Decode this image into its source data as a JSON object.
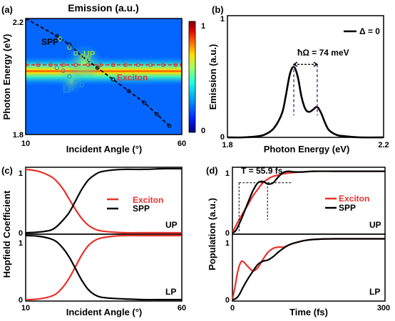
{
  "chart_data": [
    {
      "panel": "(a)",
      "type": "heatmap",
      "title": "Emission (a.u.)",
      "xlabel": "Incident Angle (°)",
      "ylabel": "Photon Energy (eV)",
      "xlim": [
        10,
        60
      ],
      "ylim": [
        1.8,
        2.2
      ],
      "xticks": [
        "10",
        "60"
      ],
      "yticks": [
        "1.8",
        "2.2"
      ],
      "colorbar": {
        "min": "0",
        "max": "1",
        "colors": [
          "#00007f",
          "#0020ff",
          "#00a0ff",
          "#20ffdf",
          "#9fff60",
          "#ffdf00",
          "#ff6000",
          "#df0000",
          "#7f0000"
        ]
      },
      "annotations": [
        {
          "text": "SPP",
          "color": "#000000"
        },
        {
          "text": "UP",
          "color": "#8fd94f"
        },
        {
          "text": "Exciton",
          "color": "#e8322b"
        },
        {
          "text": "LP",
          "color": "#2b8fd9"
        }
      ],
      "series": [
        {
          "name": "SPP",
          "style": "dashed",
          "color": "#000000",
          "x": [
            10,
            20,
            24,
            28,
            33,
            38,
            43,
            48,
            52,
            56
          ],
          "y": [
            2.2,
            2.14,
            2.11,
            2.07,
            2.03,
            1.99,
            1.95,
            1.91,
            1.87,
            1.83
          ]
        },
        {
          "name": "Exciton",
          "style": "dashed",
          "color": "#e8322b",
          "x": [
            10,
            14,
            18,
            22,
            26,
            30,
            34,
            38,
            42,
            46,
            50,
            54,
            58,
            60
          ],
          "y": [
            2.04,
            2.04,
            2.04,
            2.04,
            2.04,
            2.04,
            2.04,
            2.04,
            2.04,
            2.04,
            2.04,
            2.04,
            2.04,
            2.04
          ]
        },
        {
          "name": "UP",
          "style": "markers",
          "color": "#8fd94f",
          "x": [
            21,
            24,
            26,
            28,
            30
          ],
          "y": [
            2.13,
            2.1,
            2.08,
            2.07,
            2.06
          ]
        },
        {
          "name": "LP",
          "style": "markers",
          "color": "#2b8fd9",
          "x": [
            20,
            22,
            24,
            26,
            28
          ],
          "y": [
            2.03,
            2.02,
            2.0,
            1.98,
            1.97
          ]
        }
      ]
    },
    {
      "panel": "(b)",
      "type": "line",
      "xlabel": "Photon Energy (eV)",
      "ylabel": "Emission (a.u.)",
      "xlim": [
        1.8,
        2.2
      ],
      "ylim": [
        0,
        1
      ],
      "xticks": [
        "1.8",
        "2.2"
      ],
      "yticks": [
        "0",
        "1"
      ],
      "legend": "top-right",
      "annotation": "ħΩ = 74 meV",
      "series": [
        {
          "name": "Δ = 0",
          "color": "#000000",
          "x": [
            1.8,
            1.84,
            1.88,
            1.9,
            1.92,
            1.94,
            1.95,
            1.96,
            1.97,
            1.98,
            1.99,
            2.0,
            2.01,
            2.02,
            2.03,
            2.04,
            2.05,
            2.06,
            2.08,
            2.1,
            2.14,
            2.2
          ],
          "y": [
            0.0,
            0.0,
            0.01,
            0.03,
            0.08,
            0.2,
            0.35,
            0.52,
            0.58,
            0.5,
            0.33,
            0.23,
            0.21,
            0.23,
            0.25,
            0.2,
            0.12,
            0.06,
            0.02,
            0.01,
            0.0,
            0.0
          ]
        }
      ]
    },
    {
      "panel": "(c)",
      "type": "line",
      "xlabel": "Incident Angle (°)",
      "ylabel": "Hopfield Coefficient",
      "xlim": [
        10,
        60
      ],
      "xticks": [
        "10",
        "60"
      ],
      "legend": "top-right",
      "subplots": [
        {
          "label": "UP",
          "ylim": [
            0,
            1
          ],
          "yticks": [
            "0",
            "1"
          ],
          "series": [
            {
              "name": "Exciton",
              "color": "#e8322b",
              "x": [
                10,
                14,
                18,
                20,
                22,
                24,
                26,
                28,
                30,
                32,
                34,
                38,
                42,
                48,
                54,
                60
              ],
              "y": [
                0.99,
                0.96,
                0.88,
                0.8,
                0.68,
                0.52,
                0.36,
                0.22,
                0.12,
                0.06,
                0.03,
                0.01,
                0.0,
                0.0,
                0.0,
                0.0
              ]
            },
            {
              "name": "SPP",
              "color": "#000000",
              "x": [
                10,
                14,
                18,
                20,
                22,
                24,
                26,
                28,
                30,
                32,
                34,
                38,
                42,
                48,
                54,
                60
              ],
              "y": [
                0.0,
                0.01,
                0.04,
                0.1,
                0.2,
                0.32,
                0.5,
                0.68,
                0.82,
                0.9,
                0.95,
                0.98,
                0.99,
                0.99,
                1.0,
                1.0
              ]
            }
          ]
        },
        {
          "label": "LP",
          "ylim": [
            0,
            1
          ],
          "yticks": [
            "0",
            "1"
          ],
          "series": [
            {
              "name": "Exciton",
              "color": "#e8322b",
              "x": [
                10,
                14,
                18,
                20,
                22,
                24,
                26,
                28,
                30,
                32,
                34,
                38,
                42,
                48,
                54,
                60
              ],
              "y": [
                0.0,
                0.01,
                0.05,
                0.1,
                0.2,
                0.34,
                0.52,
                0.7,
                0.84,
                0.92,
                0.96,
                0.99,
                1.0,
                1.0,
                1.0,
                1.0
              ]
            },
            {
              "name": "SPP",
              "color": "#000000",
              "x": [
                10,
                14,
                18,
                20,
                22,
                24,
                26,
                28,
                30,
                32,
                34,
                38,
                42,
                48,
                54,
                60
              ],
              "y": [
                1.0,
                0.99,
                0.95,
                0.9,
                0.8,
                0.66,
                0.48,
                0.3,
                0.16,
                0.08,
                0.04,
                0.02,
                0.01,
                0.0,
                0.0,
                0.0
              ]
            }
          ]
        }
      ]
    },
    {
      "panel": "(d)",
      "type": "line",
      "xlabel": "Time (fs)",
      "ylabel": "Population (a.u.)",
      "xlim": [
        0,
        300
      ],
      "xticks": [
        "0",
        "300"
      ],
      "legend": "top-right",
      "annotation": "T = 55.9 fs",
      "subplots": [
        {
          "label": "UP",
          "ylim": [
            0,
            1
          ],
          "yticks": [
            "0",
            "1"
          ],
          "series": [
            {
              "name": "Exciton",
              "color": "#e8322b",
              "x": [
                0,
                5,
                10,
                20,
                30,
                40,
                50,
                60,
                70,
                80,
                90,
                100,
                120,
                140,
                160,
                200,
                250,
                300
              ],
              "y": [
                0.0,
                0.08,
                0.16,
                0.3,
                0.43,
                0.57,
                0.68,
                0.78,
                0.84,
                0.88,
                0.9,
                0.92,
                0.94,
                0.95,
                0.96,
                0.96,
                0.96,
                0.96
              ]
            },
            {
              "name": "SPP",
              "color": "#000000",
              "x": [
                0,
                5,
                10,
                20,
                30,
                40,
                50,
                60,
                70,
                80,
                90,
                100,
                110,
                120,
                140,
                160,
                200,
                250,
                300
              ],
              "y": [
                0.0,
                0.02,
                0.08,
                0.26,
                0.46,
                0.65,
                0.78,
                0.8,
                0.76,
                0.78,
                0.87,
                0.94,
                0.96,
                0.95,
                0.95,
                0.96,
                0.96,
                0.96,
                0.96
              ]
            }
          ]
        },
        {
          "label": "LP",
          "ylim": [
            0,
            1
          ],
          "yticks": [
            "0",
            "1"
          ],
          "series": [
            {
              "name": "Exciton",
              "color": "#e8322b",
              "x": [
                0,
                5,
                10,
                15,
                20,
                30,
                40,
                50,
                60,
                70,
                80,
                90,
                100,
                110,
                120,
                140,
                160,
                200,
                250,
                300
              ],
              "y": [
                0.0,
                0.2,
                0.42,
                0.56,
                0.6,
                0.52,
                0.45,
                0.5,
                0.63,
                0.74,
                0.8,
                0.82,
                0.82,
                0.85,
                0.88,
                0.92,
                0.94,
                0.95,
                0.95,
                0.95
              ]
            },
            {
              "name": "SPP",
              "color": "#000000",
              "x": [
                0,
                5,
                10,
                15,
                20,
                30,
                40,
                50,
                60,
                70,
                80,
                90,
                100,
                110,
                120,
                140,
                160,
                200,
                250,
                300
              ],
              "y": [
                0.0,
                0.01,
                0.04,
                0.1,
                0.18,
                0.32,
                0.44,
                0.55,
                0.6,
                0.62,
                0.67,
                0.74,
                0.8,
                0.85,
                0.88,
                0.92,
                0.94,
                0.95,
                0.95,
                0.95
              ]
            }
          ]
        }
      ]
    }
  ]
}
